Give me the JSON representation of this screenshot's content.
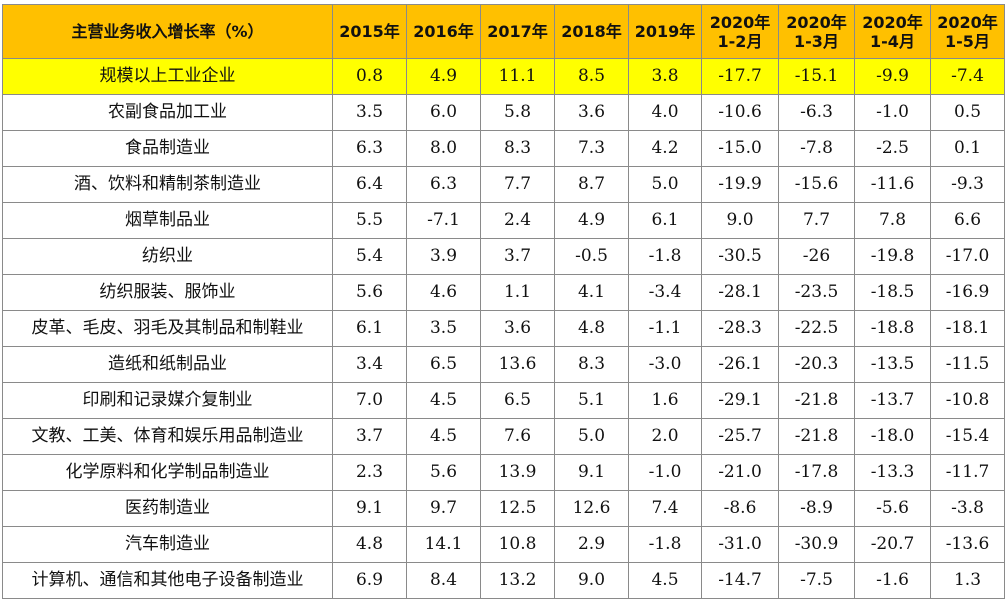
{
  "table": {
    "header": [
      "主营业务收入增长率（%）",
      "2015年",
      "2016年",
      "2017年",
      "2018年",
      "2019年",
      "2020年\n1-2月",
      "2020年\n1-3月",
      "2020年\n1-4月",
      "2020年\n1-5月"
    ],
    "rows": [
      [
        "规模以上工业企业",
        "0.8",
        "4.9",
        "11.1",
        "8.5",
        "3.8",
        "-17.7",
        "-15.1",
        "-9.9",
        "-7.4"
      ],
      [
        "农副食品加工业",
        "3.5",
        "6.0",
        "5.8",
        "3.6",
        "4.0",
        "-10.6",
        "-6.3",
        "-1.0",
        "0.5"
      ],
      [
        "食品制造业",
        "6.3",
        "8.0",
        "8.3",
        "7.3",
        "4.2",
        "-15.0",
        "-7.8",
        "-2.5",
        "0.1"
      ],
      [
        "酒、饮料和精制茶制造业",
        "6.4",
        "6.3",
        "7.7",
        "8.7",
        "5.0",
        "-19.9",
        "-15.6",
        "-11.6",
        "-9.3"
      ],
      [
        "烟草制品业",
        "5.5",
        "-7.1",
        "2.4",
        "4.9",
        "6.1",
        "9.0",
        "7.7",
        "7.8",
        "6.6"
      ],
      [
        "纺织业",
        "5.4",
        "3.9",
        "3.7",
        "-0.5",
        "-1.8",
        "-30.5",
        "-26",
        "-19.8",
        "-17.0"
      ],
      [
        "纺织服装、服饰业",
        "5.6",
        "4.6",
        "1.1",
        "4.1",
        "-3.4",
        "-28.1",
        "-23.5",
        "-18.5",
        "-16.9"
      ],
      [
        "皮革、毛皮、羽毛及其制品和制鞋业",
        "6.1",
        "3.5",
        "3.6",
        "4.8",
        "-1.1",
        "-28.3",
        "-22.5",
        "-18.8",
        "-18.1"
      ],
      [
        "造纸和纸制品业",
        "3.4",
        "6.5",
        "13.6",
        "8.3",
        "-3.0",
        "-26.1",
        "-20.3",
        "-13.5",
        "-11.5"
      ],
      [
        "印刷和记录媒介复制业",
        "7.0",
        "4.5",
        "6.5",
        "5.1",
        "1.6",
        "-29.1",
        "-21.8",
        "-13.7",
        "-10.8"
      ],
      [
        "文教、工美、体育和娱乐用品制造业",
        "3.7",
        "4.5",
        "7.6",
        "5.0",
        "2.0",
        "-25.7",
        "-21.8",
        "-18.0",
        "-15.4"
      ],
      [
        "化学原料和化学制品制造业",
        "2.3",
        "5.6",
        "13.9",
        "9.1",
        "-1.0",
        "-21.0",
        "-17.8",
        "-13.3",
        "-11.7"
      ],
      [
        "医药制造业",
        "9.1",
        "9.7",
        "12.5",
        "12.6",
        "7.4",
        "-8.6",
        "-8.9",
        "-5.6",
        "-3.8"
      ],
      [
        "汽车制造业",
        "4.8",
        "14.1",
        "10.8",
        "2.9",
        "-1.8",
        "-31.0",
        "-30.9",
        "-20.7",
        "-13.6"
      ],
      [
        "计算机、通信和其他电子设备制造业",
        "6.9",
        "8.4",
        "13.2",
        "9.0",
        "4.5",
        "-14.7",
        "-7.5",
        "-1.6",
        "1.3"
      ]
    ],
    "highlight_row": 0,
    "colors": {
      "header_bg": "#ffc000",
      "highlight_bg": "#ffff00",
      "grid": "#8a8a8a"
    }
  }
}
